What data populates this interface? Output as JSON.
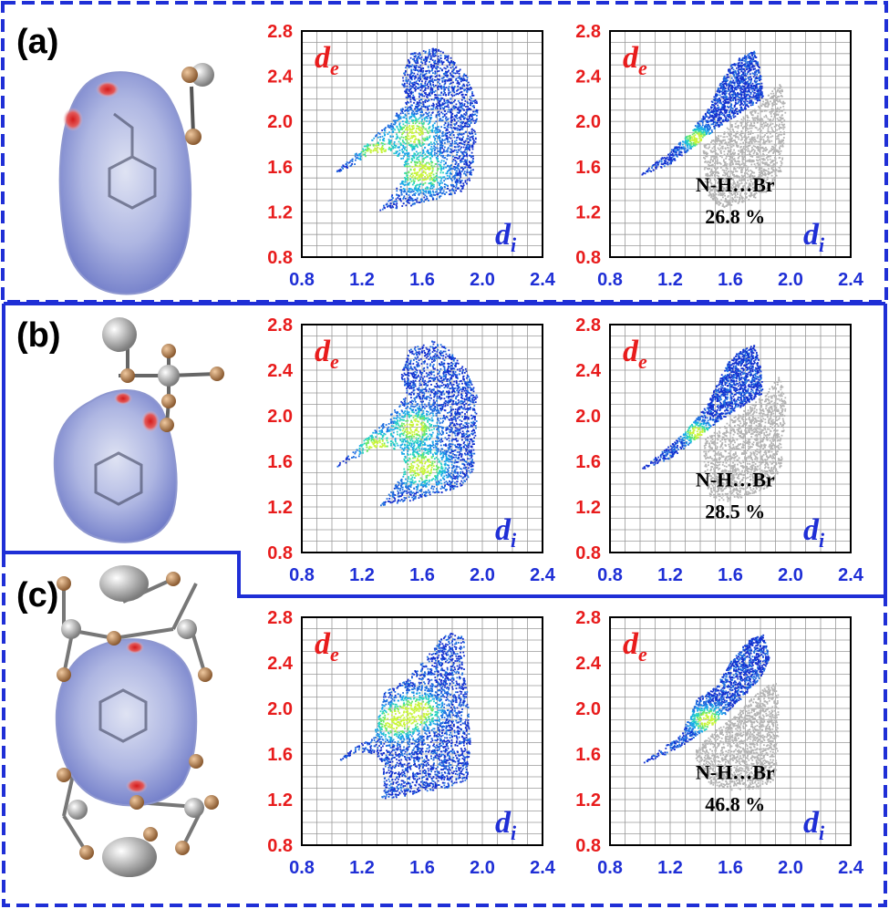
{
  "colors": {
    "frame": "#1f2fd6",
    "y_axis_text": "#e81c1c",
    "x_axis_text": "#1f2fd6",
    "highlight_gray": "#b4b4b4",
    "label_text": "#000000"
  },
  "axis": {
    "y_symbol": "d",
    "y_subscript": "e",
    "x_symbol": "d",
    "x_subscript": "i"
  },
  "panels": [
    {
      "label": "(a)"
    },
    {
      "label": "(b)"
    },
    {
      "label": "(c)"
    }
  ],
  "chart_data": [
    {
      "type": "scatter",
      "panel": "(a)",
      "view": "full",
      "xlim": [
        0.8,
        2.4
      ],
      "ylim": [
        0.8,
        2.8
      ],
      "xticks": [
        "0.8",
        "1.2",
        "1.6",
        "2.0",
        "2.4"
      ],
      "yticks": [
        "0.8",
        "1.2",
        "1.6",
        "2.0",
        "2.4",
        "2.8"
      ],
      "grid": true,
      "contact_label": "",
      "contact_percent": ""
    },
    {
      "type": "scatter",
      "panel": "(a)",
      "view": "decomposed",
      "xlim": [
        0.8,
        2.4
      ],
      "ylim": [
        0.8,
        2.8
      ],
      "xticks": [
        "0.8",
        "1.2",
        "1.6",
        "2.0",
        "2.4"
      ],
      "yticks": [
        "0.8",
        "1.2",
        "1.6",
        "2.0",
        "2.4",
        "2.8"
      ],
      "grid": true,
      "contact_label": "N-H…Br",
      "contact_percent": "26.8 %"
    },
    {
      "type": "scatter",
      "panel": "(b)",
      "view": "full",
      "xlim": [
        0.8,
        2.4
      ],
      "ylim": [
        0.8,
        2.8
      ],
      "xticks": [
        "0.8",
        "1.2",
        "1.6",
        "2.0",
        "2.4"
      ],
      "yticks": [
        "0.8",
        "1.2",
        "1.6",
        "2.0",
        "2.4",
        "2.8"
      ],
      "grid": true,
      "contact_label": "",
      "contact_percent": ""
    },
    {
      "type": "scatter",
      "panel": "(b)",
      "view": "decomposed",
      "xlim": [
        0.8,
        2.4
      ],
      "ylim": [
        0.8,
        2.8
      ],
      "xticks": [
        "0.8",
        "1.2",
        "1.6",
        "2.0",
        "2.4"
      ],
      "yticks": [
        "0.8",
        "1.2",
        "1.6",
        "2.0",
        "2.4",
        "2.8"
      ],
      "grid": true,
      "contact_label": "N-H…Br",
      "contact_percent": "28.5 %"
    },
    {
      "type": "scatter",
      "panel": "(c)",
      "view": "full",
      "xlim": [
        0.8,
        2.4
      ],
      "ylim": [
        0.8,
        2.8
      ],
      "xticks": [
        "0.8",
        "1.2",
        "1.6",
        "2.0",
        "2.4"
      ],
      "yticks": [
        "0.8",
        "1.2",
        "1.6",
        "2.0",
        "2.4",
        "2.8"
      ],
      "grid": true,
      "contact_label": "",
      "contact_percent": ""
    },
    {
      "type": "scatter",
      "panel": "(c)",
      "view": "decomposed",
      "xlim": [
        0.8,
        2.4
      ],
      "ylim": [
        0.8,
        2.8
      ],
      "xticks": [
        "0.8",
        "1.2",
        "1.6",
        "2.0",
        "2.4"
      ],
      "yticks": [
        "0.8",
        "1.2",
        "1.6",
        "2.0",
        "2.4",
        "2.8"
      ],
      "grid": true,
      "contact_label": "N-H…Br",
      "contact_percent": "46.8 %"
    }
  ]
}
